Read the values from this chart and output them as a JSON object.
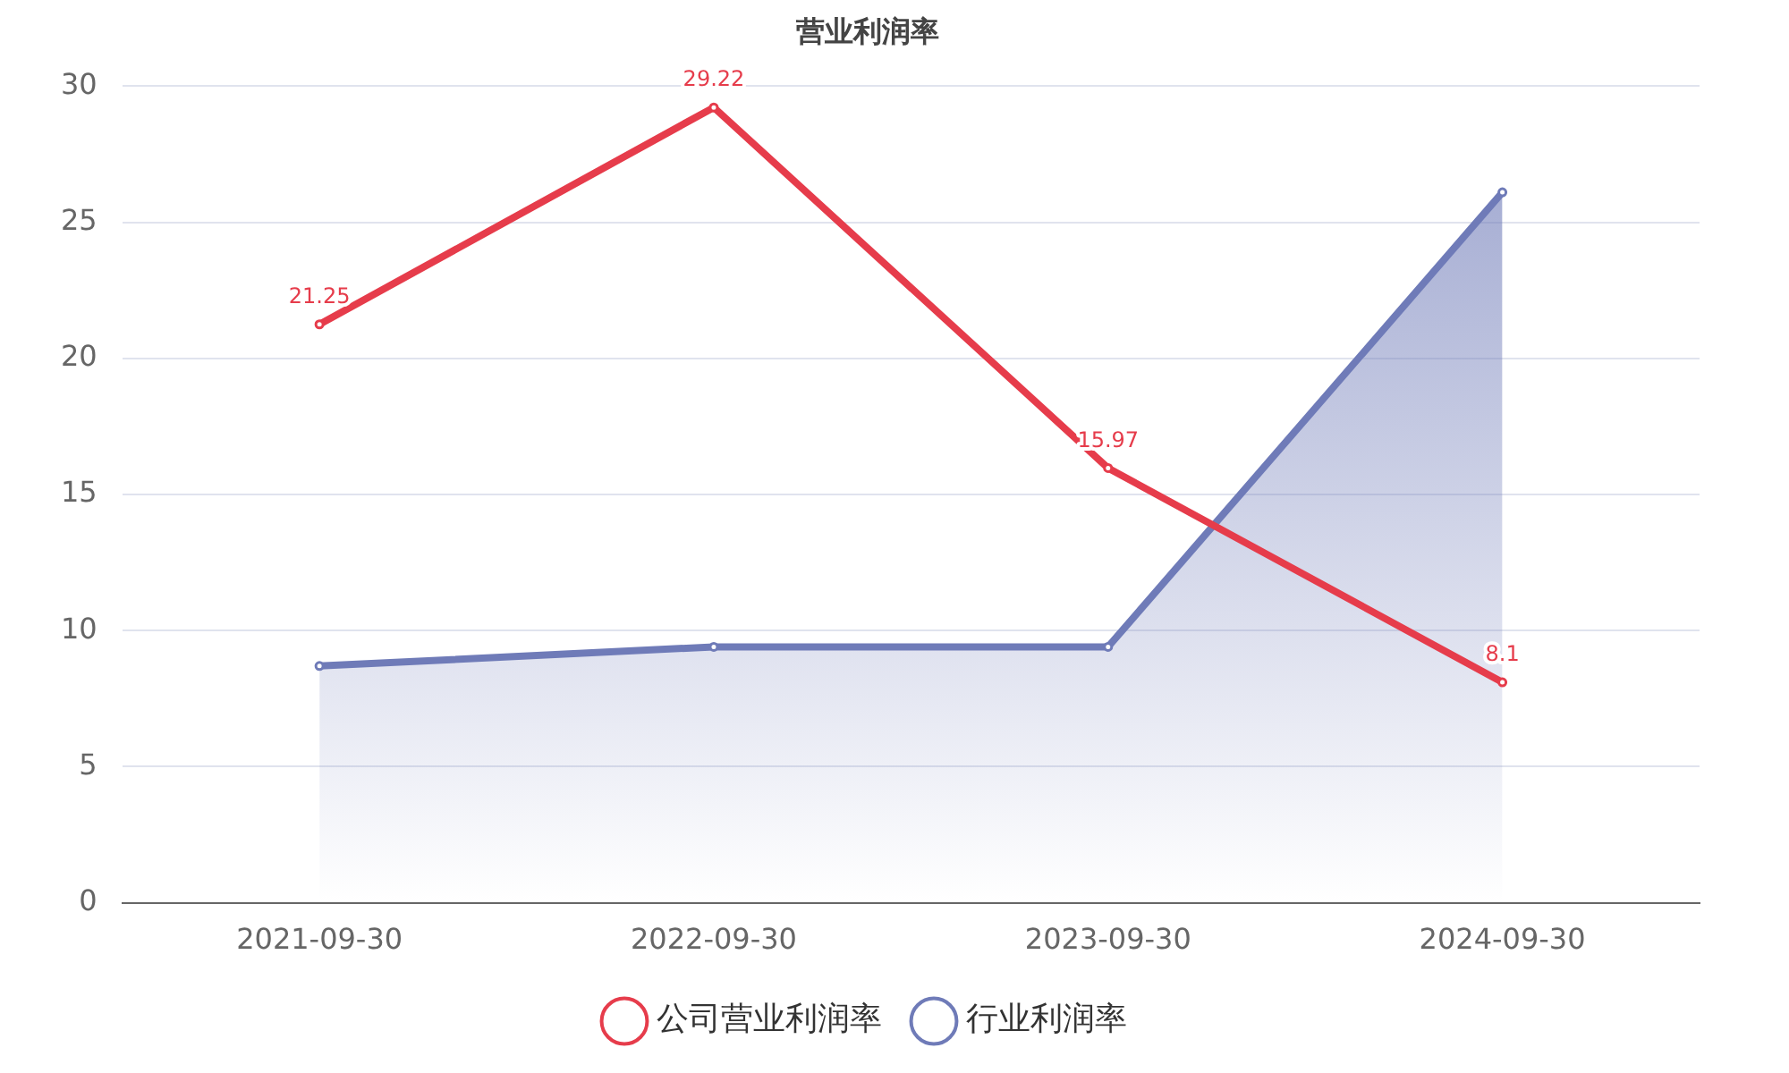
{
  "chart_data": {
    "type": "line",
    "title": "营业利润率",
    "categories": [
      "2021-09-30",
      "2022-09-30",
      "2023-09-30",
      "2024-09-30"
    ],
    "series": [
      {
        "name": "公司营业利润率",
        "color": "#e63c4b",
        "values": [
          21.25,
          29.22,
          15.97,
          8.1
        ],
        "value_labels": [
          "21.25",
          "29.22",
          "15.97",
          "8.1"
        ]
      },
      {
        "name": "行业利润率",
        "type": "area",
        "color": "#6f7bb8",
        "values": [
          8.7,
          9.4,
          9.4,
          26.1
        ]
      }
    ],
    "ylim": [
      0,
      30
    ],
    "yticks": [
      0,
      5,
      10,
      15,
      20,
      25,
      30
    ],
    "grid": "y",
    "legend": "bottom",
    "marker": "circle",
    "line_style": "solid"
  }
}
